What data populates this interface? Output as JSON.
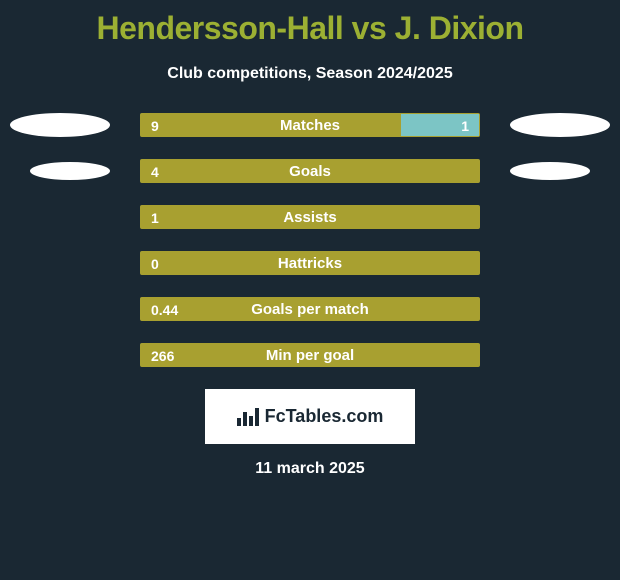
{
  "title": "Hendersson-Hall vs J. Dixion",
  "subtitle": "Club competitions, Season 2024/2025",
  "logo_text": "FcTables.com",
  "date": "11 march 2025",
  "background_color": "#1a2833",
  "accent_color": "#9cb033",
  "bar_left_color": "#a8a030",
  "bar_right_color": "#7cc5c5",
  "bar_border_color": "#a8a030",
  "ellipse_color": "#ffffff",
  "text_color": "#ffffff",
  "title_fontsize": 32,
  "subtitle_fontsize": 16,
  "label_fontsize": 15,
  "value_fontsize": 14,
  "rows": [
    {
      "label": "Matches",
      "left_val": "9",
      "right_val": "1",
      "left_pct": 77,
      "right_pct": 23,
      "show_left_ellipse": true,
      "show_right_ellipse": true,
      "show_right_val": true
    },
    {
      "label": "Goals",
      "left_val": "4",
      "right_val": "",
      "left_pct": 100,
      "right_pct": 0,
      "show_left_ellipse": true,
      "show_right_ellipse": true,
      "show_right_val": false
    },
    {
      "label": "Assists",
      "left_val": "1",
      "right_val": "",
      "left_pct": 100,
      "right_pct": 0,
      "show_left_ellipse": false,
      "show_right_ellipse": false,
      "show_right_val": false
    },
    {
      "label": "Hattricks",
      "left_val": "0",
      "right_val": "",
      "left_pct": 100,
      "right_pct": 0,
      "show_left_ellipse": false,
      "show_right_ellipse": false,
      "show_right_val": false
    },
    {
      "label": "Goals per match",
      "left_val": "0.44",
      "right_val": "",
      "left_pct": 100,
      "right_pct": 0,
      "show_left_ellipse": false,
      "show_right_ellipse": false,
      "show_right_val": false
    },
    {
      "label": "Min per goal",
      "left_val": "266",
      "right_val": "",
      "left_pct": 100,
      "right_pct": 0,
      "show_left_ellipse": false,
      "show_right_ellipse": false,
      "show_right_val": false
    }
  ]
}
